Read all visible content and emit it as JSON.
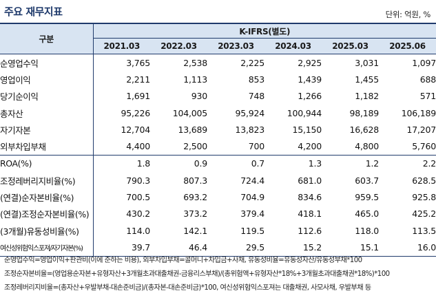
{
  "title": "주요 재무지표",
  "unit": "단위: 억원, %",
  "table": {
    "row_header": "구분",
    "group_header": "K-IFRS(별도)",
    "years": [
      "2021.03",
      "2022.03",
      "2023.03",
      "2024.03",
      "2025.03",
      "2025.06"
    ],
    "rows": [
      {
        "label": "순영업수익",
        "values": [
          "3,765",
          "2,538",
          "2,225",
          "2,925",
          "3,031",
          "1,097"
        ]
      },
      {
        "label": "영업이익",
        "values": [
          "2,211",
          "1,113",
          "853",
          "1,439",
          "1,455",
          "688"
        ]
      },
      {
        "label": "당기순이익",
        "values": [
          "1,691",
          "930",
          "748",
          "1,266",
          "1,182",
          "571"
        ]
      },
      {
        "label": "총자산",
        "values": [
          "95,226",
          "104,005",
          "95,924",
          "100,944",
          "98,189",
          "106,189"
        ]
      },
      {
        "label": "자기자본",
        "values": [
          "12,704",
          "13,689",
          "13,823",
          "15,150",
          "16,628",
          "17,207"
        ]
      },
      {
        "label": "외부차입부채",
        "values": [
          "4,400",
          "2,500",
          "700",
          "4,200",
          "4,800",
          "5,760"
        ]
      },
      {
        "label": "ROA(%)",
        "values": [
          "1.8",
          "0.9",
          "0.7",
          "1.3",
          "1.2",
          "2.2"
        ]
      },
      {
        "label": "조정레버리지비율(%)",
        "values": [
          "790.3",
          "807.3",
          "724.4",
          "681.0",
          "603.7",
          "628.5"
        ]
      },
      {
        "label": "(연결)순자본비율(%)",
        "values": [
          "700.5",
          "693.2",
          "704.9",
          "834.6",
          "959.5",
          "925.8"
        ]
      },
      {
        "label": "(연결)조정순자본비율(%)",
        "values": [
          "430.2",
          "373.2",
          "379.4",
          "418.1",
          "465.0",
          "425.2"
        ]
      },
      {
        "label": "(3개월)유동성비율(%)",
        "values": [
          "114.0",
          "142.1",
          "119.5",
          "112.6",
          "118.0",
          "113.5"
        ]
      },
      {
        "label": "여신성위험익스포져/자기자본(%)",
        "values": [
          "39.7",
          "46.4",
          "29.5",
          "15.2",
          "15.1",
          "16.0"
        ]
      }
    ]
  },
  "notes": [
    "순영업수익=영업이익+판관비(이에 준하는 비용), 외부차입부채=콜머니+차입금+사채, 유동성비율=유동성자산/유동성부채*100",
    "조정순자본비율=(영업용순자본+유형자산+3개월초과대출채권-금융리스부채)/(총위험액+유형자산*18%+3개월초과대출채권*18%)*100",
    "조정레버리지비율=(총자산+우발부채-대손준비금)/(총자본-대손준비금)*100, 여신성위험익스포져는 대출채권, 사모사채, 우발부채 등"
  ]
}
